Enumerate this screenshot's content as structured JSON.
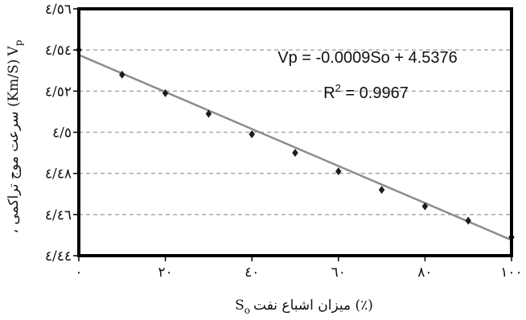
{
  "chart_data": {
    "type": "scatter",
    "xlabel_parts": {
      "symbol": "S",
      "subscript": "o",
      "text": "(٪) میزان اشباع نفت"
    },
    "ylabel_parts": {
      "symbol": "V",
      "subscript": "p",
      "text": "(Km/S) سرعت موج تراکمی ،"
    },
    "x_ticks": [
      0,
      20,
      40,
      60,
      80,
      100
    ],
    "x_tick_labels": [
      "۰",
      "۲۰",
      "٤۰",
      "٦۰",
      "۸۰",
      "۱۰۰"
    ],
    "y_ticks": [
      4.44,
      4.46,
      4.48,
      4.5,
      4.52,
      4.54,
      4.56
    ],
    "y_tick_labels": [
      "٤/٤٤",
      "٤/٤٦",
      "٤/٤۸",
      "٤/٥",
      "٤/٥۲",
      "٤/٥٤",
      "٤/٥٦"
    ],
    "xlim": [
      0,
      100
    ],
    "ylim": [
      4.44,
      4.56
    ],
    "grid": "horizontal-dashed",
    "points": {
      "x": [
        0,
        10,
        20,
        30,
        40,
        50,
        60,
        70,
        80,
        90,
        100
      ],
      "y": [
        4.54,
        4.528,
        4.519,
        4.509,
        4.499,
        4.49,
        4.481,
        4.472,
        4.464,
        4.457,
        4.449
      ]
    },
    "trendline": {
      "slope": -0.0009,
      "intercept": 4.5376
    },
    "annotations": {
      "equation": "Vp = -0.0009So + 4.5376",
      "r2_base": "R",
      "r2_sup": "2",
      "r2_rest": " = 0.9967"
    },
    "colors": {
      "trendline": "#8c8c8c",
      "marker": "#1e1e1e",
      "frame": "#000000",
      "grid": "#a9a9a9"
    }
  }
}
